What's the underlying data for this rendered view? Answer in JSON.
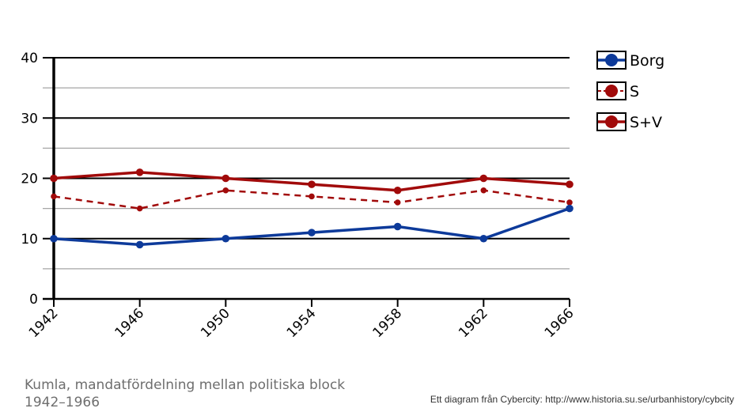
{
  "chart_data": {
    "type": "line",
    "title": "",
    "xlabel": "",
    "ylabel": "",
    "categories": [
      "1942",
      "1946",
      "1950",
      "1954",
      "1958",
      "1962",
      "1966"
    ],
    "ylim": [
      0,
      40
    ],
    "yticks": [
      "0",
      "10",
      "20",
      "30",
      "40"
    ],
    "grid": true,
    "legend_position": "right",
    "series": [
      {
        "name": "Borg",
        "values": [
          10,
          9,
          10,
          11,
          12,
          10,
          15
        ],
        "color": "#0d3a9a",
        "style": "solid"
      },
      {
        "name": "S",
        "values": [
          17,
          15,
          18,
          17,
          16,
          18,
          16
        ],
        "color": "#a10a0a",
        "style": "dashed"
      },
      {
        "name": "S+V",
        "values": [
          20,
          21,
          20,
          19,
          18,
          20,
          19
        ],
        "color": "#a10a0a",
        "style": "solid"
      }
    ]
  },
  "caption": "Kumla, mandatfördelning mellan politiska block 1942–1966",
  "source": "Ett diagram från Cybercity: http://www.historia.su.se/urbanhistory/cybcity"
}
